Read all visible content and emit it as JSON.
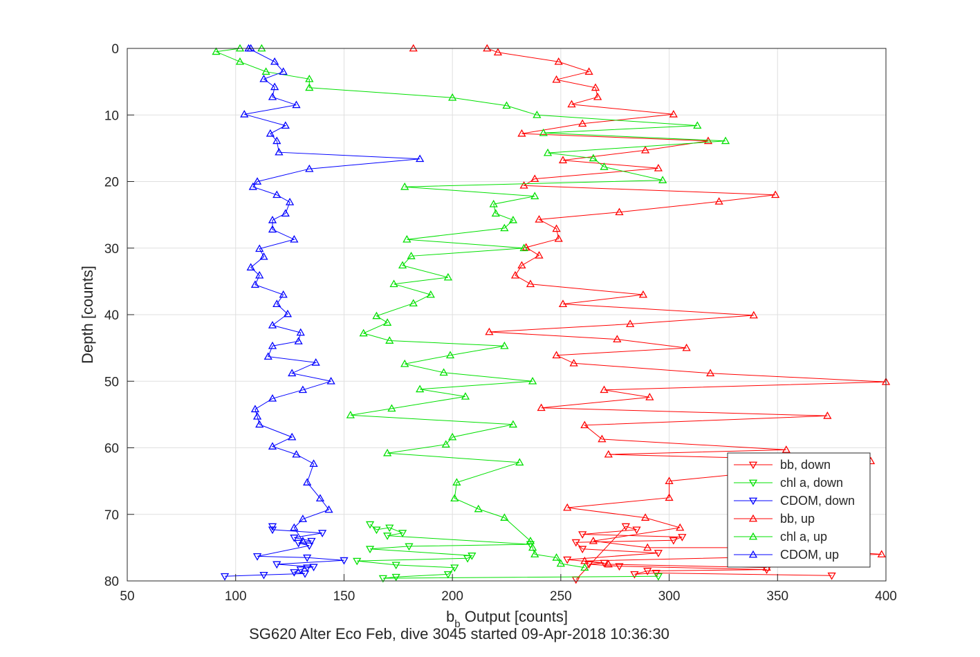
{
  "chart_data": {
    "type": "line",
    "title": "SG620 Alter Eco Feb, dive 3045 started 09-Apr-2018 10:36:30",
    "xlabel_main": "b",
    "xlabel_sub": "b",
    "xlabel_rest": " Output [counts]",
    "ylabel": "Depth [counts]",
    "xlim": [
      50,
      400
    ],
    "ylim": [
      0,
      80
    ],
    "y_reversed": true,
    "grid": true,
    "legend_position": "bottom-right",
    "xticks": [
      50,
      100,
      150,
      200,
      250,
      300,
      350,
      400
    ],
    "yticks": [
      0,
      10,
      20,
      30,
      40,
      50,
      60,
      70,
      80
    ],
    "series": [
      {
        "name": "bb, down",
        "color": "#ff0000",
        "marker": "triangle-down",
        "points": [
          [
            375,
            79.2
          ],
          [
            294,
            78.8
          ],
          [
            284,
            79
          ],
          [
            290,
            78.5
          ],
          [
            345,
            78.3
          ],
          [
            277,
            77.8
          ],
          [
            263,
            77.5
          ],
          [
            270,
            77.3
          ],
          [
            253,
            76.8
          ],
          [
            295,
            75.8
          ],
          [
            260,
            75.2
          ],
          [
            257,
            74.2
          ],
          [
            302,
            73.9
          ],
          [
            306,
            73.4
          ],
          [
            260,
            73
          ],
          [
            285,
            72.3
          ],
          [
            280,
            71.8
          ],
          [
            257,
            79.8
          ]
        ]
      },
      {
        "name": "chl a, down",
        "color": "#00e000",
        "marker": "triangle-down",
        "points": [
          [
            162,
            71.5
          ],
          [
            165,
            72.3
          ],
          [
            171,
            72
          ],
          [
            177,
            72.8
          ],
          [
            170,
            73.2
          ],
          [
            236,
            74.5
          ],
          [
            180,
            74.8
          ],
          [
            162,
            75.2
          ],
          [
            209,
            76.2
          ],
          [
            207,
            76.6
          ],
          [
            156,
            77
          ],
          [
            174,
            77.6
          ],
          [
            201,
            78
          ],
          [
            198,
            79
          ],
          [
            174,
            79.4
          ],
          [
            168,
            79.6
          ],
          [
            295,
            79.3
          ]
        ]
      },
      {
        "name": "CDOM, down",
        "color": "#0000ff",
        "marker": "triangle-down",
        "points": [
          [
            117,
            71.8
          ],
          [
            117,
            72.3
          ],
          [
            140,
            72.8
          ],
          [
            127,
            73.5
          ],
          [
            135,
            74
          ],
          [
            129,
            74.3
          ],
          [
            134,
            74.7
          ],
          [
            110,
            76.3
          ],
          [
            133,
            76.5
          ],
          [
            150,
            76.9
          ],
          [
            119,
            77.5
          ],
          [
            136,
            77.9
          ],
          [
            133,
            78
          ],
          [
            130,
            78.3
          ],
          [
            127,
            78.7
          ],
          [
            132,
            78.9
          ],
          [
            113,
            79.1
          ],
          [
            95,
            79.3
          ]
        ]
      },
      {
        "name": "bb, up",
        "color": "#ff0000",
        "marker": "triangle-up",
        "points": [
          [
            182,
            0
          ],
          [
            216,
            0
          ],
          [
            221,
            0.6
          ],
          [
            249,
            2
          ],
          [
            263,
            3.5
          ],
          [
            248,
            4.7
          ],
          [
            266,
            5.9
          ],
          [
            267,
            7.3
          ],
          [
            255,
            8.4
          ],
          [
            302,
            9.9
          ],
          [
            260,
            11.3
          ],
          [
            232,
            12.8
          ],
          [
            318,
            13.9
          ],
          [
            289,
            15.3
          ],
          [
            251,
            16.8
          ],
          [
            295,
            18
          ],
          [
            238,
            19.6
          ],
          [
            233,
            20.6
          ],
          [
            349,
            22
          ],
          [
            323,
            23
          ],
          [
            277,
            24.6
          ],
          [
            240,
            25.7
          ],
          [
            248,
            27.1
          ],
          [
            249,
            28.6
          ],
          [
            234,
            29.9
          ],
          [
            240,
            31.1
          ],
          [
            232,
            32.6
          ],
          [
            229,
            34.1
          ],
          [
            236,
            35.4
          ],
          [
            288,
            37
          ],
          [
            251,
            38.4
          ],
          [
            339,
            40.1
          ],
          [
            282,
            41.4
          ],
          [
            217,
            42.6
          ],
          [
            276,
            43.7
          ],
          [
            308,
            45
          ],
          [
            248,
            46.1
          ],
          [
            256,
            47.3
          ],
          [
            319,
            48.8
          ],
          [
            400,
            50.1
          ],
          [
            270,
            51.3
          ],
          [
            291,
            52.4
          ],
          [
            241,
            54
          ],
          [
            373,
            55.2
          ],
          [
            261,
            56.6
          ],
          [
            269,
            58.7
          ],
          [
            354,
            60.3
          ],
          [
            272,
            61
          ],
          [
            393,
            62
          ],
          [
            300,
            65
          ],
          [
            300,
            67.5
          ],
          [
            253,
            69
          ],
          [
            289,
            70.5
          ],
          [
            305,
            72
          ],
          [
            265,
            74
          ],
          [
            290,
            75
          ],
          [
            350,
            75
          ],
          [
            398,
            76
          ],
          [
            261,
            77
          ],
          [
            272,
            77.5
          ],
          [
            345,
            78
          ]
        ]
      },
      {
        "name": "chl a, up",
        "color": "#00e000",
        "marker": "triangle-up",
        "points": [
          [
            112,
            0
          ],
          [
            102,
            0
          ],
          [
            91,
            0.5
          ],
          [
            102,
            2
          ],
          [
            114,
            3.5
          ],
          [
            134,
            4.6
          ],
          [
            134,
            5.9
          ],
          [
            200,
            7.4
          ],
          [
            225,
            8.6
          ],
          [
            239,
            10
          ],
          [
            313,
            11.6
          ],
          [
            242,
            12.7
          ],
          [
            326,
            13.9
          ],
          [
            244,
            15.7
          ],
          [
            265,
            16.5
          ],
          [
            270,
            17.8
          ],
          [
            297,
            19.8
          ],
          [
            178,
            20.8
          ],
          [
            238,
            22.2
          ],
          [
            219,
            23.4
          ],
          [
            220,
            24.8
          ],
          [
            228,
            25.8
          ],
          [
            224,
            27
          ],
          [
            179,
            28.7
          ],
          [
            233,
            30
          ],
          [
            181,
            31.2
          ],
          [
            177,
            32.6
          ],
          [
            198,
            34.4
          ],
          [
            173,
            35.4
          ],
          [
            190,
            37
          ],
          [
            182,
            38.3
          ],
          [
            165,
            40.2
          ],
          [
            170,
            41.2
          ],
          [
            159,
            42.8
          ],
          [
            171,
            43.9
          ],
          [
            224,
            44.7
          ],
          [
            199,
            46.1
          ],
          [
            178,
            47.4
          ],
          [
            196,
            48.7
          ],
          [
            237,
            50
          ],
          [
            185,
            51.2
          ],
          [
            206,
            52.3
          ],
          [
            172,
            54.1
          ],
          [
            153,
            55.1
          ],
          [
            228,
            56.5
          ],
          [
            200,
            58.4
          ],
          [
            197,
            59.5
          ],
          [
            170,
            60.8
          ],
          [
            231,
            62.2
          ],
          [
            202,
            65.2
          ],
          [
            201,
            67.6
          ],
          [
            212,
            69.2
          ],
          [
            224,
            70.5
          ],
          [
            236,
            74
          ],
          [
            237,
            75
          ],
          [
            238,
            76
          ],
          [
            248,
            76.5
          ],
          [
            250,
            77.4
          ],
          [
            261,
            78
          ]
        ]
      },
      {
        "name": "CDOM, up",
        "color": "#0000ff",
        "marker": "triangle-up",
        "points": [
          [
            107,
            0
          ],
          [
            106,
            0
          ],
          [
            118,
            2
          ],
          [
            122,
            3.5
          ],
          [
            113,
            4.6
          ],
          [
            118,
            5.8
          ],
          [
            117,
            7.3
          ],
          [
            128,
            8.5
          ],
          [
            104,
            9.9
          ],
          [
            123,
            11.6
          ],
          [
            116,
            12.8
          ],
          [
            119,
            13.9
          ],
          [
            120,
            15.6
          ],
          [
            185,
            16.6
          ],
          [
            134,
            18.1
          ],
          [
            110,
            20
          ],
          [
            108,
            20.8
          ],
          [
            119,
            22
          ],
          [
            125,
            23.1
          ],
          [
            123,
            24.8
          ],
          [
            117,
            25.8
          ],
          [
            117,
            27.2
          ],
          [
            127,
            28.7
          ],
          [
            111,
            30.1
          ],
          [
            113,
            31.3
          ],
          [
            107,
            32.9
          ],
          [
            111,
            34.1
          ],
          [
            109,
            35.5
          ],
          [
            122,
            37
          ],
          [
            119,
            38.4
          ],
          [
            124,
            39.9
          ],
          [
            117,
            41.6
          ],
          [
            130,
            42.7
          ],
          [
            129,
            44
          ],
          [
            117,
            44.7
          ],
          [
            115,
            46.3
          ],
          [
            137,
            47.2
          ],
          [
            126,
            48.8
          ],
          [
            144,
            50
          ],
          [
            131,
            51.3
          ],
          [
            117,
            52.6
          ],
          [
            109,
            54.2
          ],
          [
            110,
            55.3
          ],
          [
            111,
            56.5
          ],
          [
            126,
            58.4
          ],
          [
            117,
            59.8
          ],
          [
            128,
            61
          ],
          [
            136,
            62.4
          ],
          [
            133,
            65.2
          ],
          [
            139,
            67.6
          ],
          [
            143,
            69.3
          ],
          [
            131,
            70.7
          ],
          [
            127,
            72
          ],
          [
            131,
            74
          ]
        ]
      }
    ]
  }
}
